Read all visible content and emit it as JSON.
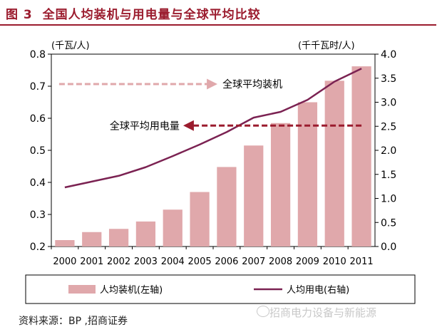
{
  "figure": {
    "label": "图 3",
    "title": "全国人均装机与用电量与全球平均比较"
  },
  "source": "资料来源：BP ,招商证券",
  "watermark": "招商电力设备与新能源",
  "colors": {
    "title": "#9b1c2e",
    "bar": "#e0a8ab",
    "line": "#7b2252",
    "annotation_cap": "#e0a8ab",
    "annotation_use": "#9b1c2e"
  },
  "chart_data": {
    "type": "bar+line",
    "categories": [
      "2000",
      "2001",
      "2002",
      "2003",
      "2004",
      "2005",
      "2006",
      "2007",
      "2008",
      "2009",
      "2010",
      "2011"
    ],
    "series": [
      {
        "name": "人均装机(左轴)",
        "type": "bar",
        "axis": "left",
        "values": [
          0.22,
          0.245,
          0.255,
          0.278,
          0.315,
          0.37,
          0.448,
          0.515,
          0.585,
          0.65,
          0.717,
          0.762
        ]
      },
      {
        "name": "人均用电(右轴)",
        "type": "line",
        "axis": "right",
        "values": [
          1.23,
          1.35,
          1.47,
          1.65,
          1.88,
          2.12,
          2.38,
          2.68,
          2.8,
          3.05,
          3.43,
          3.7
        ]
      }
    ],
    "left_axis": {
      "unit": "(千瓦/人)",
      "ylim": [
        0.2,
        0.8
      ],
      "ticks": [
        "0.2",
        "0.3",
        "0.4",
        "0.5",
        "0.6",
        "0.7",
        "0.8"
      ]
    },
    "right_axis": {
      "unit": "(千千瓦时/人)",
      "ylim": [
        0.0,
        4.0
      ],
      "ticks": [
        "0.0",
        "0.5",
        "1.0",
        "1.5",
        "2.0",
        "2.5",
        "3.0",
        "3.5",
        "4.0"
      ]
    },
    "annotations": [
      {
        "text": "全球平均装机",
        "axis": "left",
        "value": 0.7,
        "x_from": "2000",
        "x_to": "2005"
      },
      {
        "text": "全球平均用电量",
        "axis": "right",
        "value": 2.5,
        "x_from": "2006",
        "x_to": "2011"
      }
    ],
    "legend_position": "bottom"
  }
}
